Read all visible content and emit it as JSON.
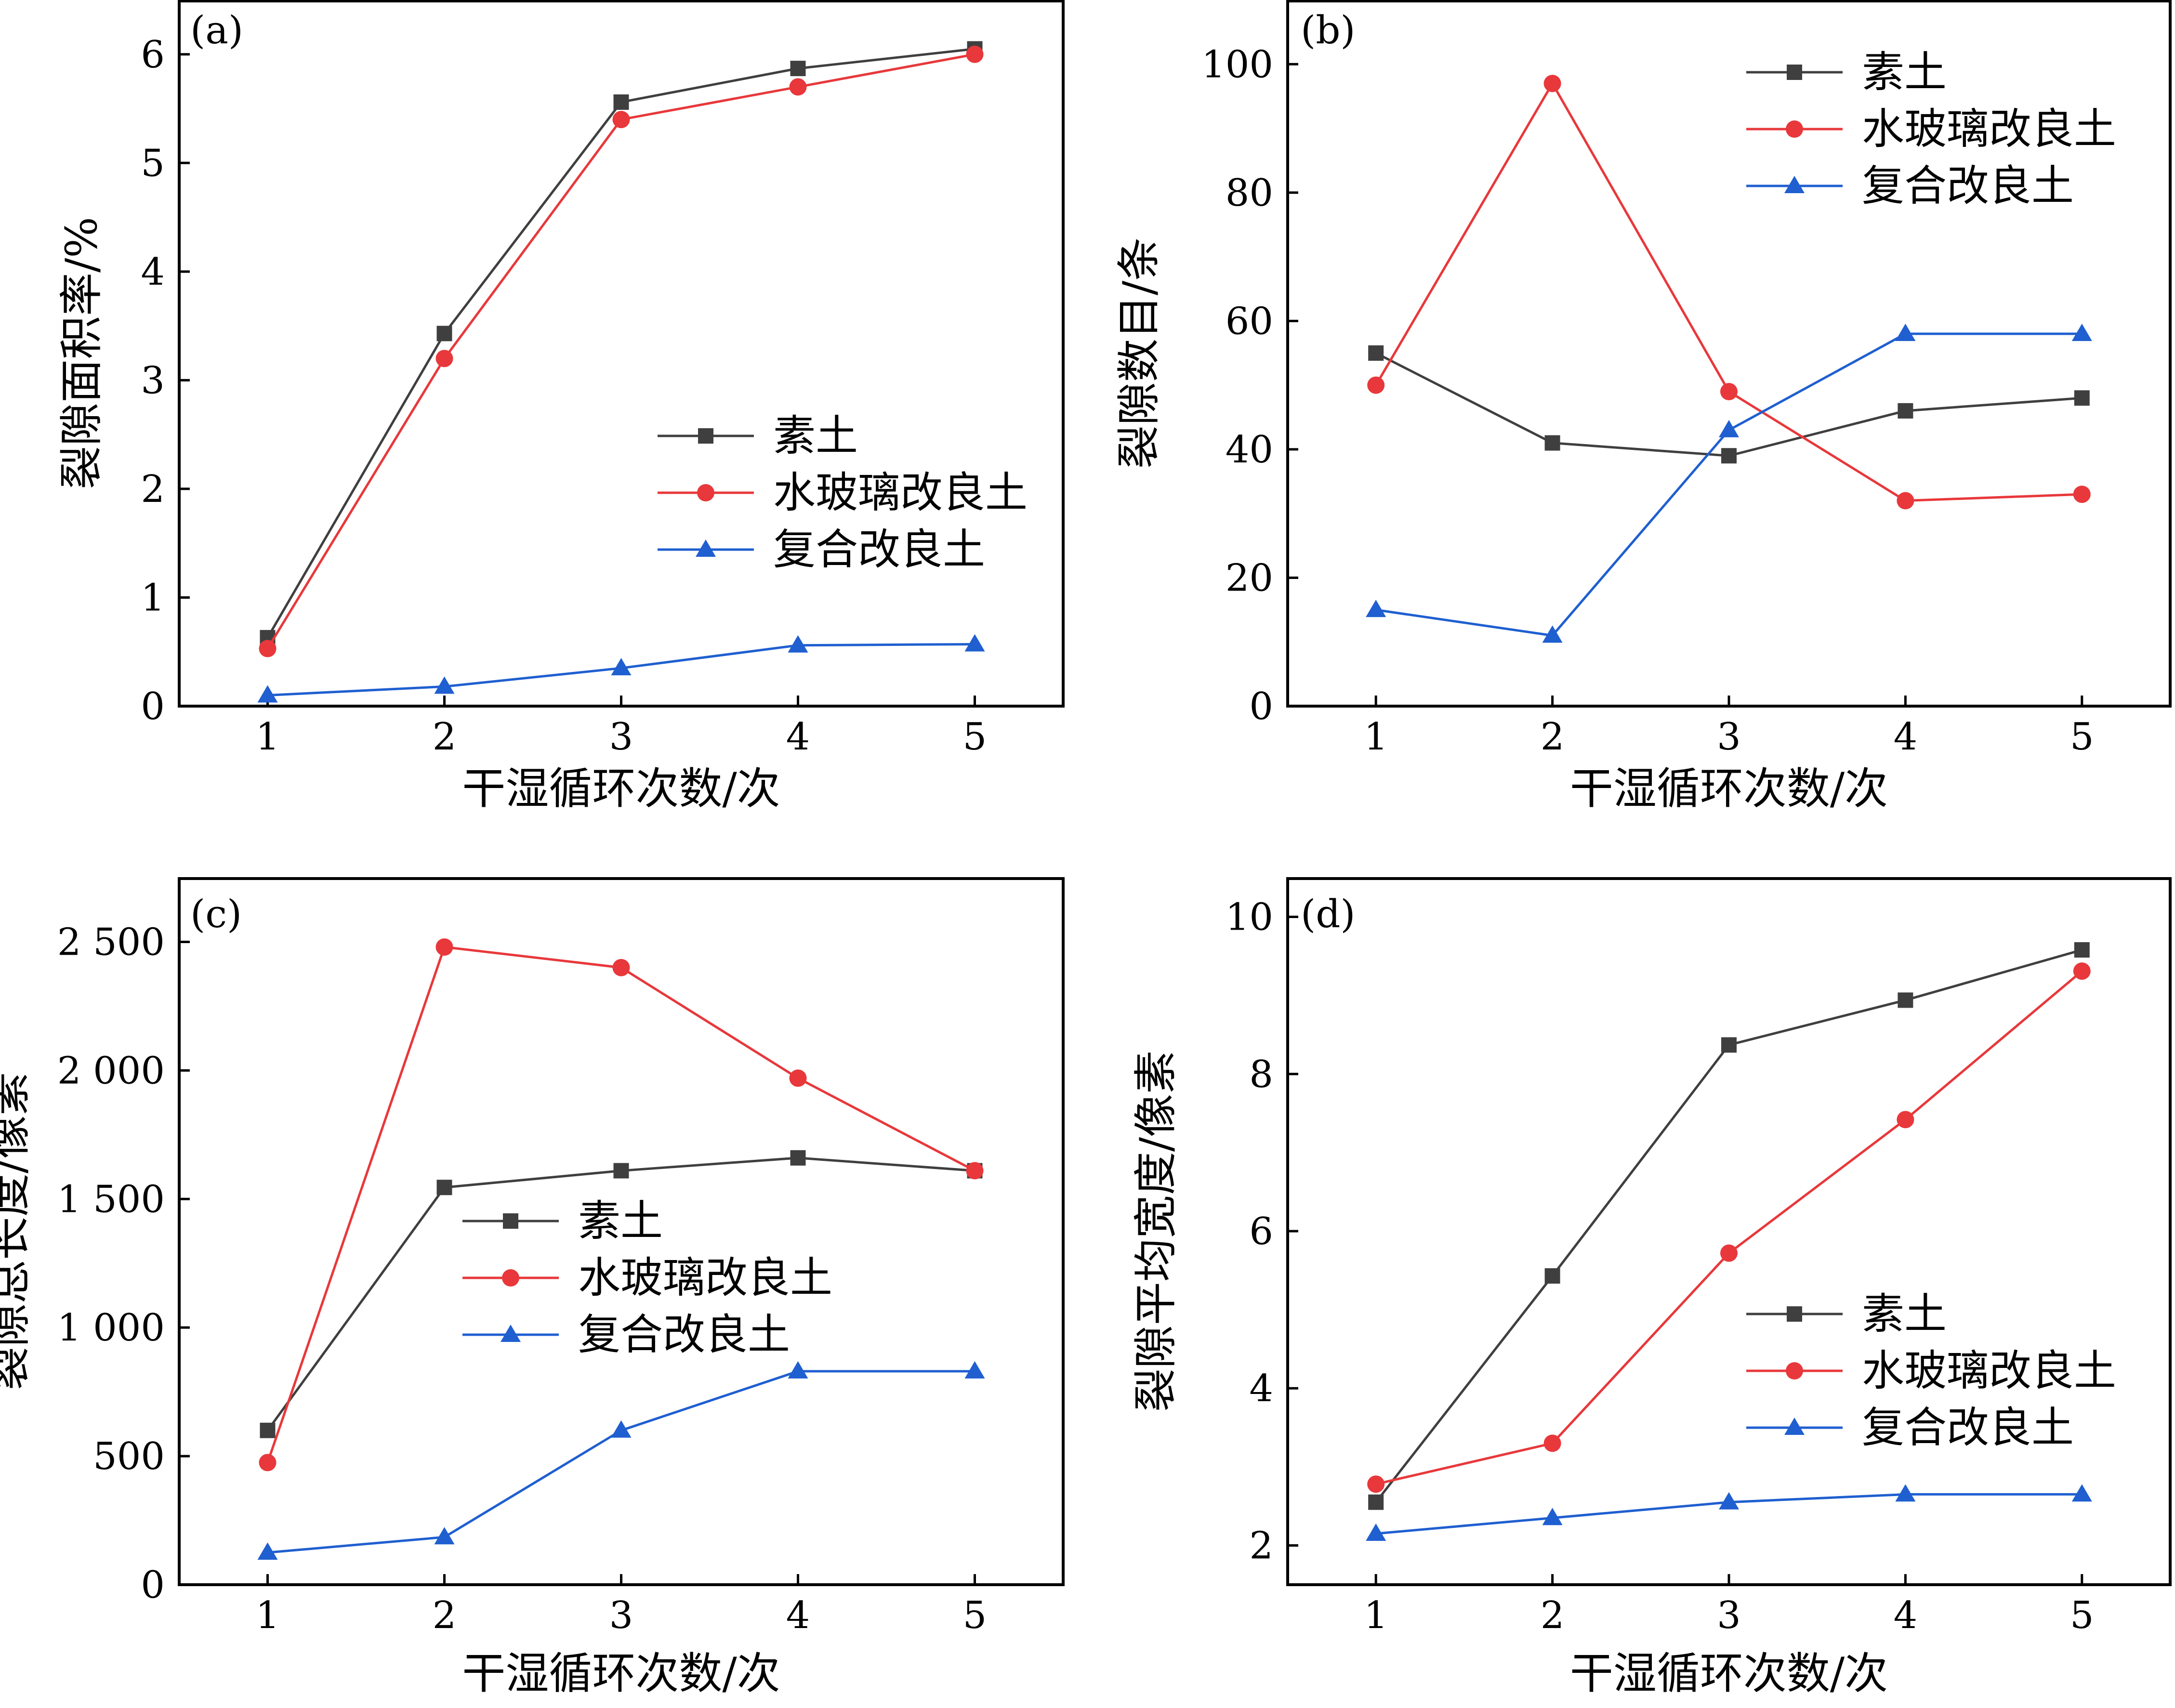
{
  "colors": {
    "frame": "#000000",
    "plain_soil": "#3f3f3f",
    "water_glass_soil": "#e8383b",
    "composite_soil": "#1f5fd0"
  },
  "legend": {
    "plain_soil": "素土",
    "water_glass_soil": "水玻璃改良土",
    "composite_soil": "复合改良土"
  },
  "chart_data": [
    {
      "panel": "(a)",
      "type": "line",
      "title": "",
      "xlabel": "干湿循环次数/次",
      "ylabel": "裂隙面积率/%",
      "x": [
        1,
        2,
        3,
        4,
        5
      ],
      "xlim": [
        0.5,
        5.5
      ],
      "ylim": [
        0,
        6.5
      ],
      "yticks": [
        0,
        1,
        2,
        3,
        4,
        5,
        6
      ],
      "ytick_labels": [
        "0",
        "1",
        "2",
        "3",
        "4",
        "5",
        "6"
      ],
      "legend_position": "center-right",
      "series": [
        {
          "key": "plain_soil",
          "name": "素土",
          "marker": "square",
          "values": [
            0.63,
            3.43,
            5.56,
            5.87,
            6.05
          ]
        },
        {
          "key": "water_glass_soil",
          "name": "水玻璃改良土",
          "marker": "circle",
          "values": [
            0.53,
            3.2,
            5.4,
            5.7,
            6.0
          ]
        },
        {
          "key": "composite_soil",
          "name": "复合改良土",
          "marker": "triangle",
          "values": [
            0.1,
            0.18,
            0.35,
            0.56,
            0.57
          ]
        }
      ]
    },
    {
      "panel": "(b)",
      "type": "line",
      "title": "",
      "xlabel": "干湿循环次数/次",
      "ylabel": "裂隙数目/条",
      "x": [
        1,
        2,
        3,
        4,
        5
      ],
      "xlim": [
        0.5,
        5.5
      ],
      "ylim": [
        0,
        110
      ],
      "yticks": [
        0,
        20,
        40,
        60,
        80,
        100
      ],
      "ytick_labels": [
        "0",
        "20",
        "40",
        "60",
        "80",
        "100"
      ],
      "legend_position": "top-right",
      "series": [
        {
          "key": "plain_soil",
          "name": "素土",
          "marker": "square",
          "values": [
            55,
            41,
            39,
            46,
            48
          ]
        },
        {
          "key": "water_glass_soil",
          "name": "水玻璃改良土",
          "marker": "circle",
          "values": [
            50,
            97,
            49,
            32,
            33
          ]
        },
        {
          "key": "composite_soil",
          "name": "复合改良土",
          "marker": "triangle",
          "values": [
            15,
            11,
            43,
            58,
            58
          ]
        }
      ]
    },
    {
      "panel": "(c)",
      "type": "line",
      "title": "",
      "xlabel": "干湿循环次数/次",
      "ylabel": "裂隙总长度/像素",
      "x": [
        1,
        2,
        3,
        4,
        5
      ],
      "xlim": [
        0.5,
        5.5
      ],
      "ylim": [
        0,
        2750
      ],
      "yticks": [
        0,
        500,
        1000,
        1500,
        2000,
        2500
      ],
      "ytick_labels": [
        "0",
        "500",
        "1 000",
        "1 500",
        "2 000",
        "2 500"
      ],
      "legend_position": "center-right",
      "series": [
        {
          "key": "plain_soil",
          "name": "素土",
          "marker": "square",
          "values": [
            600,
            1545,
            1610,
            1660,
            1610
          ]
        },
        {
          "key": "water_glass_soil",
          "name": "水玻璃改良土",
          "marker": "circle",
          "values": [
            475,
            2480,
            2400,
            1970,
            1610
          ]
        },
        {
          "key": "composite_soil",
          "name": "复合改良土",
          "marker": "triangle",
          "values": [
            125,
            185,
            600,
            830,
            830
          ]
        }
      ]
    },
    {
      "panel": "(d)",
      "type": "line",
      "title": "",
      "xlabel": "干湿循环次数/次",
      "ylabel": "裂隙平均宽度/像素",
      "x": [
        1,
        2,
        3,
        4,
        5
      ],
      "xlim": [
        0.5,
        5.5
      ],
      "ylim": [
        1.5,
        10.5
      ],
      "yticks": [
        2,
        4,
        6,
        8,
        10
      ],
      "ytick_labels": [
        "2",
        "4",
        "6",
        "8",
        "10"
      ],
      "legend_position": "bottom-right",
      "series": [
        {
          "key": "plain_soil",
          "name": "素土",
          "marker": "square",
          "values": [
            2.55,
            5.43,
            8.37,
            8.94,
            9.58
          ]
        },
        {
          "key": "water_glass_soil",
          "name": "水玻璃改良土",
          "marker": "circle",
          "values": [
            2.78,
            3.3,
            5.72,
            7.42,
            9.31
          ]
        },
        {
          "key": "composite_soil",
          "name": "复合改良土",
          "marker": "triangle",
          "values": [
            2.15,
            2.35,
            2.55,
            2.65,
            2.65
          ]
        }
      ]
    }
  ]
}
